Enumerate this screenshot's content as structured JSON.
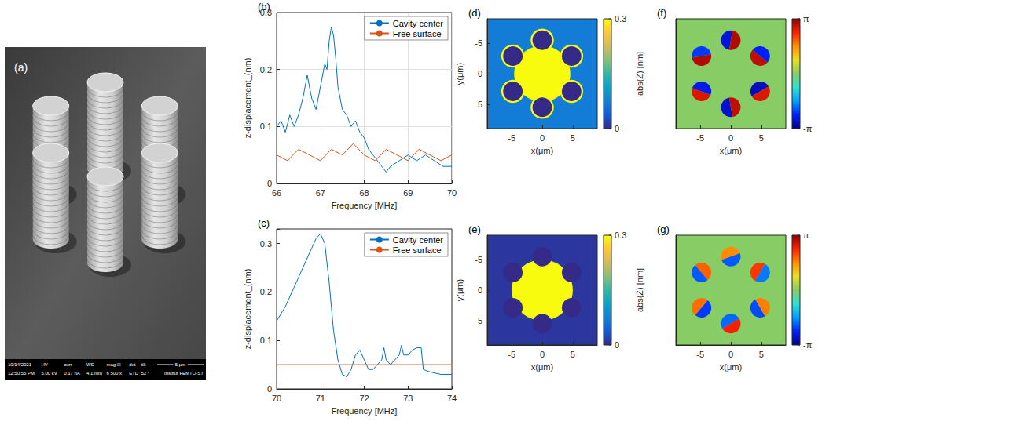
{
  "image": {
    "panel": "(a)",
    "info_bar": [
      [
        "10/14/2021",
        "12:50:55 PM"
      ],
      [
        "HV",
        "5.00 kV"
      ],
      [
        "curr",
        "0.17 nA"
      ],
      [
        "WD",
        "4.1 mm"
      ],
      [
        "mag ⊞",
        "6 500 x"
      ],
      [
        "det",
        "ETD"
      ],
      [
        "tilt",
        "52 °"
      ]
    ],
    "scale_bar": "5 μm",
    "institute": "Institut FEMTO-ST"
  },
  "chart_data": [
    {
      "panel": "(b)",
      "type": "line",
      "xlabel": "Frequency [MHz]",
      "ylabel": "z-displacement_(nm)",
      "xlim": [
        66,
        70
      ],
      "xticks": [
        66,
        67,
        68,
        69,
        70
      ],
      "ylim": [
        0,
        0.3
      ],
      "yticks": [
        0,
        0.1,
        0.2,
        0.3
      ],
      "grid": true,
      "legend": "upper right",
      "series": [
        {
          "name": "Cavity center",
          "color": "#0072bd",
          "x": [
            66.0,
            66.1,
            66.2,
            66.3,
            66.4,
            66.5,
            66.6,
            66.7,
            66.8,
            66.9,
            67.0,
            67.1,
            67.15,
            67.2,
            67.25,
            67.3,
            67.35,
            67.4,
            67.5,
            67.6,
            67.7,
            67.8,
            67.9,
            68.0,
            68.1,
            68.2,
            68.3,
            68.4,
            68.5,
            68.6,
            68.8,
            69.0,
            69.2,
            69.4,
            69.6,
            69.8,
            70.0
          ],
          "values": [
            0.1,
            0.11,
            0.09,
            0.12,
            0.1,
            0.12,
            0.15,
            0.19,
            0.15,
            0.13,
            0.17,
            0.21,
            0.2,
            0.25,
            0.275,
            0.26,
            0.22,
            0.17,
            0.13,
            0.12,
            0.1,
            0.11,
            0.09,
            0.08,
            0.06,
            0.05,
            0.04,
            0.03,
            0.02,
            0.03,
            0.04,
            0.05,
            0.04,
            0.05,
            0.04,
            0.03,
            0.03
          ]
        },
        {
          "name": "Free surface",
          "color": "#d95319",
          "x": [
            66,
            66.25,
            66.5,
            66.75,
            67,
            67.25,
            67.5,
            67.75,
            68,
            68.25,
            68.5,
            68.75,
            69,
            69.25,
            69.5,
            69.75,
            70
          ],
          "values": [
            0.05,
            0.04,
            0.06,
            0.05,
            0.04,
            0.06,
            0.05,
            0.07,
            0.05,
            0.04,
            0.06,
            0.05,
            0.04,
            0.06,
            0.05,
            0.04,
            0.05
          ]
        }
      ]
    },
    {
      "panel": "(c)",
      "type": "line",
      "xlabel": "Frequency [MHz]",
      "ylabel": "z-displacement_(nm)",
      "xlim": [
        70,
        74
      ],
      "xticks": [
        70,
        71,
        72,
        73,
        74
      ],
      "ylim": [
        0,
        0.33
      ],
      "yticks": [
        0,
        0.1,
        0.2,
        0.3
      ],
      "grid": false,
      "legend": "upper right",
      "series": [
        {
          "name": "Cavity center",
          "color": "#0072bd",
          "x": [
            70.0,
            70.2,
            70.4,
            70.6,
            70.8,
            70.9,
            71.0,
            71.1,
            71.2,
            71.3,
            71.4,
            71.5,
            71.6,
            71.7,
            71.8,
            71.9,
            72.0,
            72.1,
            72.2,
            72.3,
            72.4,
            72.45,
            72.5,
            72.6,
            72.7,
            72.8,
            72.85,
            72.9,
            73.0,
            73.1,
            73.2,
            73.3,
            73.35,
            73.5,
            73.75,
            74.0
          ],
          "values": [
            0.14,
            0.17,
            0.21,
            0.25,
            0.29,
            0.31,
            0.32,
            0.3,
            0.22,
            0.12,
            0.06,
            0.03,
            0.025,
            0.04,
            0.07,
            0.08,
            0.06,
            0.04,
            0.04,
            0.05,
            0.06,
            0.085,
            0.06,
            0.05,
            0.06,
            0.07,
            0.09,
            0.07,
            0.07,
            0.08,
            0.085,
            0.085,
            0.04,
            0.035,
            0.03,
            0.03
          ]
        },
        {
          "name": "Free surface",
          "color": "#d95319",
          "x": [
            70,
            74
          ],
          "values": [
            0.05,
            0.05
          ]
        }
      ]
    },
    {
      "panel": "(d)",
      "type": "heatmap",
      "xlabel": "x(μm)",
      "ylabel": "y(μm)",
      "xlim": [
        -9,
        9
      ],
      "xticks": [
        -5,
        0,
        5
      ],
      "ylim": [
        -9,
        9
      ],
      "yticks": [
        -5,
        0,
        5
      ],
      "grid": false,
      "colorbar": {
        "label": "abs(Z) [nm]",
        "range": [
          0,
          0.3
        ],
        "ticks": [
          0,
          0.3
        ]
      },
      "background_value": 0.07,
      "cavity_center": [
        0,
        0
      ],
      "cavity_radius": 4.6,
      "cavity_value": 0.3,
      "pillar_radius": 1.6,
      "pillar_value": 0,
      "rim_radius": 1.9,
      "rim_value": 0.3,
      "pillars": [
        {
          "x": 0,
          "y": -5.5
        },
        {
          "x": 4.8,
          "y": -2.9
        },
        {
          "x": 4.8,
          "y": 2.9
        },
        {
          "x": 0,
          "y": 5.5
        },
        {
          "x": -4.8,
          "y": 2.9
        },
        {
          "x": -4.8,
          "y": -2.9
        }
      ]
    },
    {
      "panel": "(e)",
      "type": "heatmap",
      "xlabel": "x(μm)",
      "ylabel": "y(μm)",
      "xlim": [
        -9,
        9
      ],
      "xticks": [
        -5,
        0,
        5
      ],
      "ylim": [
        -9,
        9
      ],
      "yticks": [
        -5,
        0,
        5
      ],
      "grid": false,
      "colorbar": {
        "label": "abs(Z) [nm]",
        "range": [
          0,
          0.3
        ],
        "ticks": [
          0,
          0.3
        ]
      },
      "background_value": 0.01,
      "cavity_center": [
        0,
        0
      ],
      "cavity_radius": 5.0,
      "cavity_value": 0.3,
      "pillar_radius": 1.6,
      "pillar_value": 0,
      "pillars": [
        {
          "x": 0,
          "y": -5.5
        },
        {
          "x": 4.8,
          "y": -2.9
        },
        {
          "x": 4.8,
          "y": 2.9
        },
        {
          "x": 0,
          "y": 5.5
        },
        {
          "x": -4.8,
          "y": 2.9
        },
        {
          "x": -4.8,
          "y": -2.9
        }
      ]
    },
    {
      "panel": "(f)",
      "type": "phase",
      "xlabel": "x(μm)",
      "tick_labels": "x",
      "xlim": [
        -9,
        9
      ],
      "xticks": [
        -5,
        0,
        5
      ],
      "ylim": [
        -9,
        9
      ],
      "grid": false,
      "colorbar": {
        "range": [
          -3.1416,
          3.1416
        ],
        "ticks": [
          {
            "value": -3.1416,
            "label": "-π"
          },
          {
            "value": 3.1416,
            "label": "π"
          }
        ]
      },
      "background_value": 0,
      "pillar_radius": 1.6,
      "pillars": [
        {
          "x": 0,
          "y": -5.5,
          "split_deg": 100,
          "phase": [
            -2.6,
            2.9
          ]
        },
        {
          "x": 4.8,
          "y": -2.9,
          "split_deg": 40,
          "phase": [
            2.8,
            -2.4
          ]
        },
        {
          "x": 4.8,
          "y": 2.9,
          "split_deg": 150,
          "phase": [
            -2.8,
            2.6
          ]
        },
        {
          "x": 0,
          "y": 5.5,
          "split_deg": 80,
          "phase": [
            -2.7,
            2.8
          ]
        },
        {
          "x": -4.8,
          "y": 2.9,
          "split_deg": 20,
          "phase": [
            2.6,
            -2.5
          ]
        },
        {
          "x": -4.8,
          "y": -2.9,
          "split_deg": 170,
          "phase": [
            -2.2,
            2.9
          ]
        }
      ]
    },
    {
      "panel": "(g)",
      "type": "phase",
      "xlabel": "x(μm)",
      "tick_labels": "x",
      "xlim": [
        -9,
        9
      ],
      "xticks": [
        -5,
        0,
        5
      ],
      "ylim": [
        -9,
        9
      ],
      "grid": false,
      "colorbar": {
        "range": [
          -3.1416,
          3.1416
        ],
        "ticks": [
          {
            "value": -3.1416,
            "label": "-π"
          },
          {
            "value": 3.1416,
            "label": "π"
          }
        ]
      },
      "background_value": 0,
      "pillar_radius": 1.6,
      "pillars": [
        {
          "x": 0,
          "y": -5.5,
          "split_deg": 160,
          "phase": [
            1.6,
            -2.0
          ]
        },
        {
          "x": 4.8,
          "y": -2.9,
          "split_deg": 120,
          "phase": [
            2.2,
            -1.8
          ]
        },
        {
          "x": 4.8,
          "y": 2.9,
          "split_deg": 60,
          "phase": [
            -2.1,
            1.7
          ]
        },
        {
          "x": 0,
          "y": 5.5,
          "split_deg": 150,
          "phase": [
            -1.9,
            2.4
          ]
        },
        {
          "x": -4.8,
          "y": 2.9,
          "split_deg": 130,
          "phase": [
            1.8,
            -2.2
          ]
        },
        {
          "x": -4.8,
          "y": -2.9,
          "split_deg": 50,
          "phase": [
            -2.0,
            1.9
          ]
        }
      ]
    }
  ]
}
